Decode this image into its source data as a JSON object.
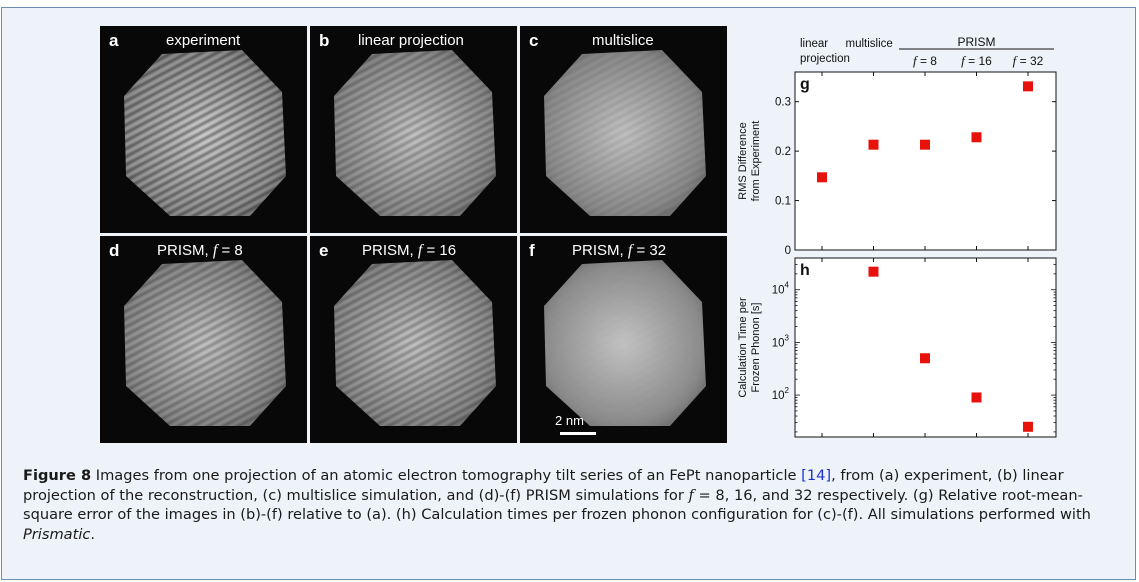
{
  "panels": [
    {
      "letter": "a",
      "title": "experiment",
      "italic_f": "",
      "title_suffix": ""
    },
    {
      "letter": "b",
      "title": "linear projection",
      "italic_f": "",
      "title_suffix": ""
    },
    {
      "letter": "c",
      "title": "multislice",
      "italic_f": "",
      "title_suffix": ""
    },
    {
      "letter": "d",
      "title": "PRISM, ",
      "italic_f": "f",
      "title_suffix": " = 8"
    },
    {
      "letter": "e",
      "title": "PRISM, ",
      "italic_f": "f",
      "title_suffix": " = 16"
    },
    {
      "letter": "f",
      "title": "PRISM, ",
      "italic_f": "f",
      "title_suffix": " = 32"
    }
  ],
  "scale_bar_label": "2 nm",
  "chart_header": {
    "col1_line1": "linear",
    "col1_line2": "projection",
    "col2": "multislice",
    "group": "PRISM",
    "f_labels": [
      "f = 8",
      "f = 16",
      "f = 32"
    ]
  },
  "chart_data": [
    {
      "type": "scatter",
      "panel_label": "g",
      "categories": [
        "linear projection",
        "multislice",
        "PRISM f = 8",
        "PRISM f = 16",
        "PRISM f = 32"
      ],
      "values": [
        0.147,
        0.213,
        0.213,
        0.228,
        0.331
      ],
      "ylabel_line1": "RMS Difference",
      "ylabel_line2": "from Experiment",
      "ylim": [
        0,
        0.36
      ],
      "yticks": [
        0,
        0.1,
        0.2,
        0.3
      ],
      "ytick_labels": [
        "0",
        "0.1",
        "0.2",
        "0.3"
      ],
      "marker_color": "#e8120c"
    },
    {
      "type": "scatter",
      "panel_label": "h",
      "categories": [
        "multislice",
        "PRISM f = 8",
        "PRISM f = 16",
        "PRISM f = 32"
      ],
      "x_index": [
        1,
        2,
        3,
        4
      ],
      "values": [
        22000,
        500,
        90,
        25
      ],
      "log_scale": true,
      "ylabel_line1": "Calculation Time per",
      "ylabel_line2": "Frozen Phonon [s]",
      "ylim": [
        16,
        40000
      ],
      "ytick_labels": [
        "10",
        "10",
        "10"
      ],
      "ytick_exponents": [
        "2",
        "3",
        "4"
      ],
      "marker_color": "#e8120c"
    }
  ],
  "caption": {
    "label": "Figure 8",
    "text1": " Images from one projection of an atomic electron tomography tilt series of an FePt nanoparticle ",
    "ref": "[14]",
    "text2": ", from (a) experiment, (b) linear projection of the reconstruction, (c) multislice simulation, and (d)-(f) PRISM simulations for ",
    "math": "f",
    "text3": " = 8, 16, and 32 respectively. (g) Relative root-mean-square error of the images in (b)-(f) relative to (a). (h) Calculation times per frozen phonon configuration for (c)-(f). All simulations performed with ",
    "software": "Prismatic",
    "text4": "."
  },
  "colors": {
    "frame_border": "#6b8fb4",
    "frame_background": "#eef3f9",
    "marker": "#e8120c",
    "reference_link": "#1d2fd6"
  }
}
